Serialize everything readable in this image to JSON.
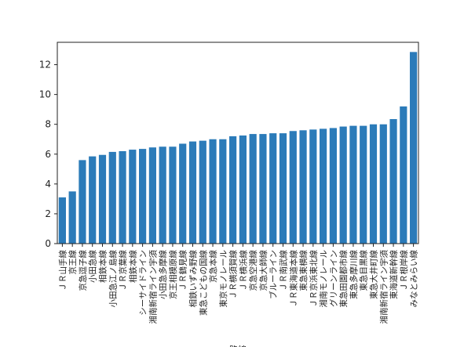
{
  "chart_data": {
    "type": "bar",
    "xlabel": "路線",
    "ylabel": "",
    "ylim": [
      0,
      13.5
    ],
    "yticks": [
      0,
      2,
      4,
      6,
      8,
      10,
      12
    ],
    "grid": false,
    "legend": "none",
    "bar_color": "#2b7bb9",
    "categories": [
      "ＪＲ山手線",
      "京王線",
      "京急逗子線",
      "小田急線",
      "相鉄本線",
      "小田急江ノ島線",
      "ＪＲ京葉線",
      "相鉄本線",
      "シーサイドライン",
      "湘南新宿ライン宇須",
      "小田急多摩線",
      "京王相模原線",
      "ＪＲ鶴見線",
      "相鉄いずみ野線",
      "東急こどもの国線",
      "京急本線",
      "東京モノレール",
      "ＪＲ横須賀線",
      "ＪＲ横浜線",
      "京急空港線",
      "京急大師線",
      "ブルーライン",
      "ＪＲ南武線",
      "ＪＲ東海道本線",
      "東急東横線",
      "ＪＲ京浜東北線",
      "湘南モノレール",
      "グリーンライン",
      "東急田園都市線",
      "東急多摩川線",
      "東急目黒線",
      "東急大井町線",
      "湘南新宿ライン宇須",
      "東海道新幹線",
      "ＪＲ根岸線",
      "みなとみらい線"
    ],
    "values": [
      3.1,
      3.5,
      5.6,
      5.85,
      5.95,
      6.15,
      6.2,
      6.3,
      6.35,
      6.45,
      6.5,
      6.5,
      6.7,
      6.85,
      6.9,
      7.0,
      7.0,
      7.2,
      7.25,
      7.35,
      7.35,
      7.4,
      7.4,
      7.55,
      7.6,
      7.65,
      7.7,
      7.75,
      7.85,
      7.9,
      7.9,
      8.0,
      8.0,
      8.35,
      9.2,
      12.85
    ]
  }
}
